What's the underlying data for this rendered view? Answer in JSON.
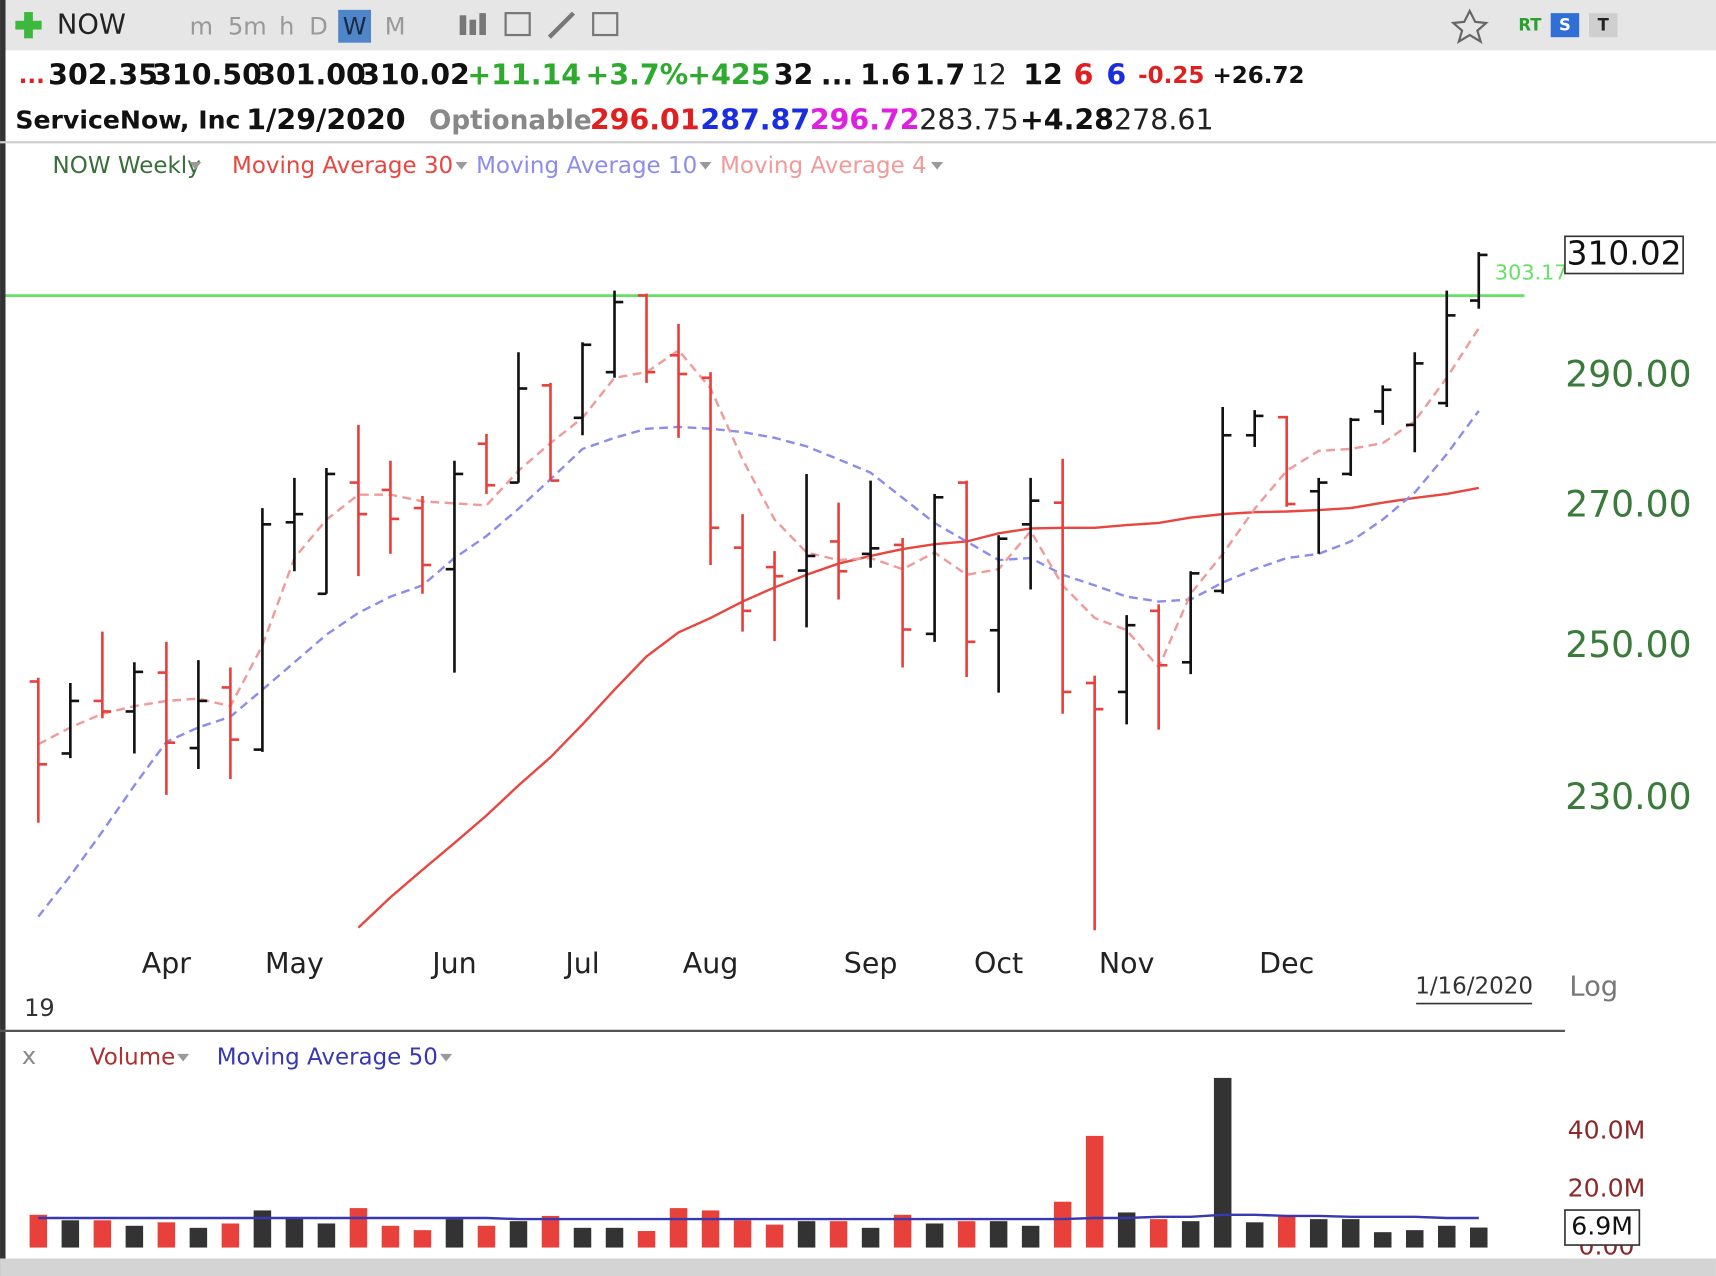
{
  "toolbar": {
    "symbol": "NOW",
    "intervals": [
      "m",
      "5m",
      "h",
      "D",
      "W",
      "M"
    ],
    "active_interval": "W",
    "badges": [
      "RT",
      "S",
      "T"
    ]
  },
  "quote": {
    "row1": [
      "...",
      "302.35",
      "310.50",
      "301.00",
      "310.02",
      "+11.14",
      "+3.7%",
      "+425",
      "32",
      "...",
      "1.6",
      "1.7",
      "12",
      "12",
      "6",
      "6",
      "-0.25",
      "+26.72"
    ],
    "row2": [
      "ServiceNow, Inc",
      "1/29/2020",
      "Optionable",
      "296.01",
      "287.87",
      "296.72",
      "283.75",
      "+4.28",
      "278.61"
    ]
  },
  "chart_data": [
    {
      "type": "ohlc",
      "log_scale": true,
      "ylim": [
        214,
        321
      ],
      "yticks": [
        {
          "value": 230,
          "label": "230.00"
        },
        {
          "value": 250,
          "label": "250.00"
        },
        {
          "value": 270,
          "label": "270.00"
        },
        {
          "value": 290,
          "label": "290.00"
        }
      ],
      "categories": [
        null,
        null,
        null,
        null,
        "Apr",
        null,
        null,
        null,
        "May",
        null,
        null,
        null,
        null,
        "Jun",
        null,
        null,
        null,
        "Jul",
        null,
        null,
        null,
        "Aug",
        null,
        null,
        null,
        null,
        "Sep",
        null,
        null,
        null,
        "Oct",
        null,
        null,
        null,
        "Nov",
        null,
        null,
        null,
        null,
        "Dec",
        null,
        null,
        null,
        null,
        null,
        null
      ],
      "hline": {
        "value": 303.17,
        "color": "#66e066"
      },
      "year_label": "19",
      "date_label": "1/16/2020",
      "scale_label": "Log",
      "series": [
        {
          "name": "NOW Weekly",
          "type": "ohlc",
          "color": "#3a6e3a",
          "up_color": "#111111",
          "down_color": "#e8403a",
          "open": [
            245.3,
            235.8,
            242.7,
            241.3,
            246.5,
            236.5,
            244.5,
            236.3,
            267.7,
            257.4,
            273.6,
            272.5,
            269.8,
            260.9,
            279.5,
            273.6,
            288.6,
            283.5,
            290.7,
            303.2,
            293.4,
            289.8,
            264.0,
            261.2,
            260.7,
            264.9,
            263.1,
            264.4,
            251.8,
            273.6,
            252.3,
            267.4,
            270.6,
            245.1,
            243.9,
            255.0,
            247.9,
            257.8,
            280.8,
            283.6,
            272.3,
            274.9,
            284.5,
            282.4,
            285.8,
            302.35
          ],
          "high": [
            245.8,
            245.1,
            252.1,
            247.9,
            250.7,
            248.2,
            247.2,
            269.8,
            274.3,
            275.8,
            282.4,
            276.9,
            271.6,
            276.9,
            281.0,
            293.9,
            289.0,
            295.5,
            304.0,
            303.5,
            298.5,
            290.7,
            268.9,
            263.5,
            274.9,
            270.6,
            273.9,
            265.4,
            271.9,
            273.9,
            265.8,
            274.3,
            277.2,
            246.1,
            254.4,
            255.9,
            260.6,
            285.2,
            284.7,
            283.8,
            274.3,
            283.5,
            288.6,
            293.9,
            304.0,
            310.5
          ],
          "low": [
            227.0,
            235.2,
            240.4,
            235.8,
            230.5,
            233.8,
            232.5,
            236.0,
            260.6,
            257.4,
            259.9,
            263.1,
            257.4,
            246.5,
            271.9,
            273.6,
            273.9,
            280.8,
            289.8,
            289.0,
            280.4,
            261.5,
            252.1,
            250.8,
            252.7,
            256.6,
            261.1,
            247.2,
            250.7,
            245.9,
            243.8,
            258.0,
            241.0,
            214.0,
            239.6,
            238.9,
            246.3,
            257.4,
            279.0,
            270.0,
            263.1,
            274.6,
            282.4,
            278.2,
            285.2,
            301.0
          ],
          "close": [
            234.4,
            242.7,
            241.3,
            246.6,
            237.2,
            242.7,
            237.6,
            267.4,
            268.9,
            274.9,
            268.9,
            268.2,
            261.5,
            274.9,
            273.2,
            288.1,
            273.9,
            295.1,
            302.1,
            290.7,
            290.4,
            266.9,
            255.0,
            259.9,
            262.8,
            260.6,
            263.9,
            252.4,
            271.4,
            250.7,
            265.3,
            270.9,
            243.9,
            241.6,
            253.0,
            247.5,
            260.3,
            280.8,
            283.8,
            270.4,
            273.6,
            283.2,
            287.9,
            292.1,
            299.9,
            310.02
          ]
        },
        {
          "name": "Moving Average 30",
          "type": "line",
          "color": "#e8463f",
          "dashed": false,
          "values": [
            null,
            null,
            null,
            null,
            null,
            null,
            null,
            null,
            null,
            null,
            214.3,
            217.9,
            221.2,
            224.5,
            227.9,
            231.7,
            235.3,
            239.6,
            244.2,
            248.7,
            252.0,
            254.0,
            256.3,
            258.3,
            260.1,
            261.7,
            262.8,
            263.8,
            264.5,
            264.9,
            266.1,
            266.8,
            266.9,
            266.9,
            267.3,
            267.6,
            268.4,
            268.9,
            269.2,
            269.3,
            269.5,
            269.8,
            270.6,
            271.3,
            271.9,
            272.8
          ]
        },
        {
          "name": "Moving Average 10",
          "type": "line",
          "color": "#8c8cec",
          "dashed": true,
          "values": [
            215.6,
            220.5,
            225.9,
            231.7,
            237.3,
            239.2,
            240.6,
            244.2,
            247.9,
            251.7,
            254.7,
            257.0,
            258.6,
            262.5,
            265.7,
            269.7,
            274.1,
            278.7,
            280.4,
            281.8,
            282.1,
            281.8,
            281.3,
            280.4,
            279.1,
            277.1,
            275.1,
            271.3,
            267.6,
            264.9,
            262.2,
            262.5,
            260.1,
            258.6,
            257.0,
            256.3,
            256.6,
            259.0,
            260.9,
            262.5,
            263.1,
            264.9,
            268.1,
            272.1,
            277.9,
            284.6
          ]
        },
        {
          "name": "Moving Average 4",
          "type": "line",
          "color": "#f09a9a",
          "dashed": true,
          "values": [
            237.0,
            239.2,
            241.0,
            242.0,
            242.7,
            243.0,
            242.0,
            250.2,
            262.5,
            268.1,
            271.8,
            271.8,
            270.8,
            270.5,
            270.2,
            275.4,
            279.6,
            283.5,
            289.8,
            290.7,
            294.2,
            288.1,
            277.1,
            268.1,
            263.3,
            262.2,
            262.5,
            260.9,
            263.3,
            260.1,
            260.9,
            266.4,
            258.6,
            254.0,
            252.3,
            247.2,
            257.4,
            263.1,
            269.7,
            275.4,
            278.4,
            278.7,
            279.6,
            283.0,
            289.8,
            297.8
          ]
        }
      ]
    },
    {
      "type": "bar",
      "close_button": "x",
      "ylim": [
        0,
        71.7
      ],
      "yticks": [
        {
          "value": 0,
          "label": "0.00"
        },
        {
          "value": 20,
          "label": "20.0M"
        },
        {
          "value": 40,
          "label": "40.0M"
        }
      ],
      "series": [
        {
          "name": "Volume",
          "type": "bar",
          "color": "#b03030",
          "up_color": "#333333",
          "down_color": "#e8403a",
          "values": [
            11.3,
            9.4,
            9.4,
            7.5,
            8.7,
            6.8,
            8.3,
            12.8,
            10.2,
            8.3,
            13.6,
            7.5,
            6.0,
            9.8,
            7.5,
            9.1,
            10.9,
            6.8,
            6.8,
            5.7,
            13.6,
            12.8,
            9.4,
            7.9,
            9.1,
            9.1,
            6.8,
            11.3,
            8.3,
            9.1,
            9.1,
            7.5,
            15.8,
            38.5,
            12.1,
            9.8,
            9.1,
            58.5,
            8.7,
            10.6,
            9.8,
            9.8,
            5.3,
            6.0,
            7.5,
            6.9
          ],
          "value_labels": [
            null,
            null,
            null,
            null,
            null,
            null,
            null,
            null,
            null,
            null,
            null,
            null,
            null,
            null,
            null,
            null,
            null,
            null,
            null,
            null,
            null,
            null,
            null,
            null,
            null,
            null,
            null,
            null,
            null,
            null,
            null,
            null,
            null,
            null,
            null,
            null,
            null,
            null,
            null,
            null,
            null,
            null,
            null,
            null,
            null,
            "6.9M"
          ]
        },
        {
          "name": "Moving Average 50",
          "type": "line",
          "color": "#3838b0",
          "dashed": false,
          "values": [
            10.2,
            10.2,
            10.2,
            10.2,
            10.2,
            10.2,
            10.2,
            10.2,
            10.2,
            10.2,
            10.2,
            10.2,
            10.2,
            10.2,
            10.2,
            9.8,
            9.8,
            9.8,
            9.8,
            9.8,
            9.8,
            9.8,
            9.8,
            9.8,
            9.8,
            9.8,
            9.8,
            9.8,
            9.8,
            9.8,
            9.8,
            9.8,
            9.8,
            10.2,
            10.2,
            10.6,
            10.6,
            11.3,
            11.3,
            10.9,
            10.9,
            10.6,
            10.6,
            10.6,
            10.2,
            10.2
          ]
        }
      ]
    }
  ]
}
